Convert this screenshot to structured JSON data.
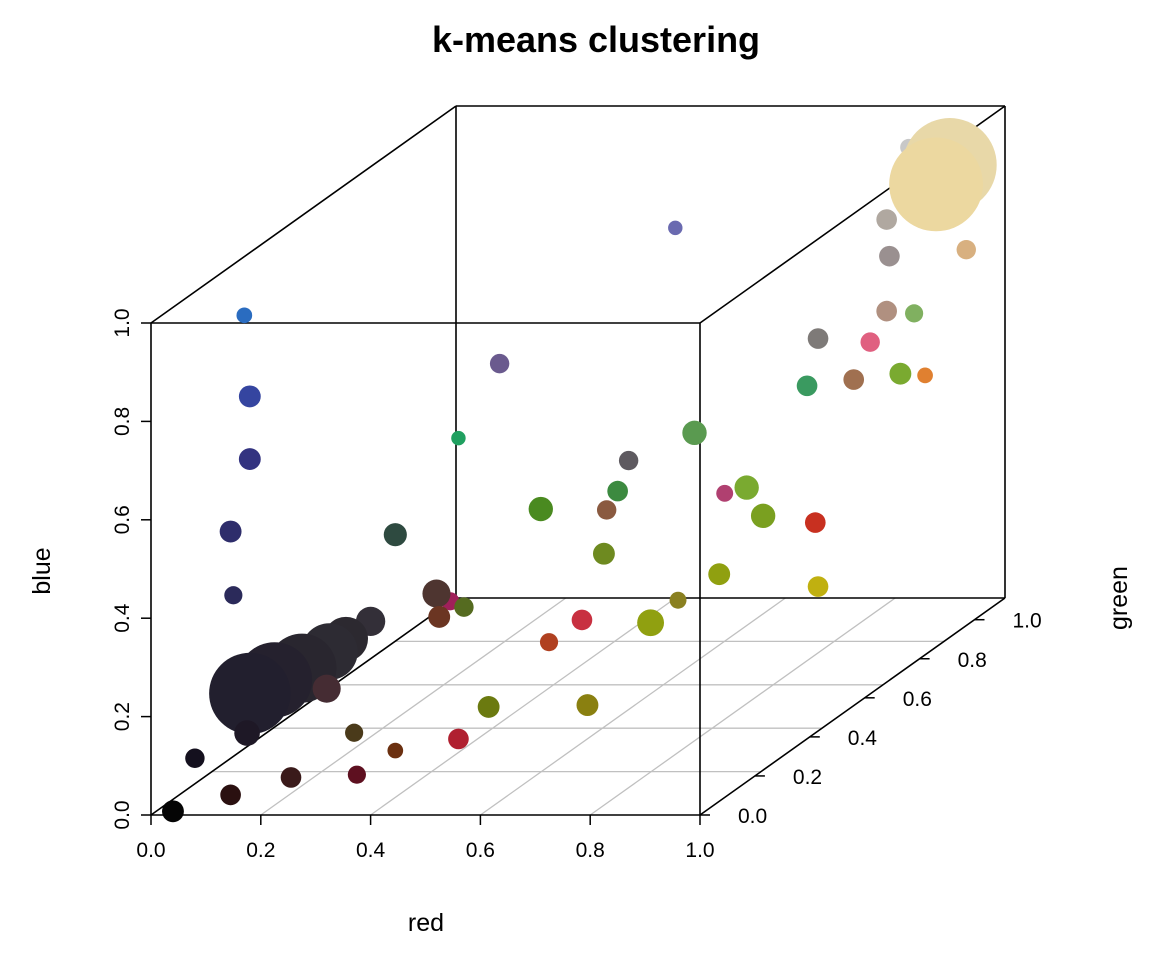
{
  "chart_data": {
    "type": "scatter",
    "title": "k-means clustering",
    "xlabel": "red",
    "ylabel": "green",
    "zlabel": "blue",
    "xlim": [
      0,
      1
    ],
    "ylim": [
      0,
      1
    ],
    "zlim": [
      0,
      1
    ],
    "x_ticks": [
      "0.0",
      "0.2",
      "0.4",
      "0.6",
      "0.8",
      "1.0"
    ],
    "y_ticks": [
      "0.0",
      "0.2",
      "0.4",
      "0.6",
      "0.8",
      "1.0"
    ],
    "z_ticks": [
      "0.0",
      "0.2",
      "0.4",
      "0.6",
      "0.8",
      "1.0"
    ],
    "grid": "floor",
    "note": "3D scatter of cluster centers; point colour = cluster colour, point size = cluster size",
    "points": [
      {
        "r": 0.03,
        "g": 0.02,
        "b": 0.02,
        "size": 1.2,
        "color": "#050505"
      },
      {
        "r": 0.07,
        "g": 0.02,
        "b": 0.13,
        "size": 1.0,
        "color": "#14101e"
      },
      {
        "r": 0.13,
        "g": 0.03,
        "b": 0.05,
        "size": 1.1,
        "color": "#2a1010"
      },
      {
        "r": 0.15,
        "g": 0.05,
        "b": 0.17,
        "size": 1.5,
        "color": "#1e1826"
      },
      {
        "r": 0.14,
        "g": 0.08,
        "b": 0.24,
        "size": 6.0,
        "color": "#221f2e"
      },
      {
        "r": 0.15,
        "g": 0.15,
        "b": 0.24,
        "size": 5.5,
        "color": "#25212e"
      },
      {
        "r": 0.17,
        "g": 0.21,
        "b": 0.24,
        "size": 5.0,
        "color": "#29262f"
      },
      {
        "r": 0.19,
        "g": 0.27,
        "b": 0.25,
        "size": 4.0,
        "color": "#2d2b33"
      },
      {
        "r": 0.2,
        "g": 0.31,
        "b": 0.26,
        "size": 3.0,
        "color": "#2c2930"
      },
      {
        "r": 0.2,
        "g": 0.4,
        "b": 0.26,
        "size": 1.8,
        "color": "#332f38"
      },
      {
        "r": 0.13,
        "g": 0.04,
        "b": 0.46,
        "size": 0.9,
        "color": "#2b2a5a"
      },
      {
        "r": 0.11,
        "g": 0.07,
        "b": 0.58,
        "size": 1.2,
        "color": "#2e2d6b"
      },
      {
        "r": 0.12,
        "g": 0.12,
        "b": 0.71,
        "size": 1.2,
        "color": "#333380"
      },
      {
        "r": 0.12,
        "g": 0.12,
        "b": 0.84,
        "size": 1.2,
        "color": "#3545a0"
      },
      {
        "r": 0.1,
        "g": 0.14,
        "b": 1.0,
        "size": 0.7,
        "color": "#2a6cc0"
      },
      {
        "r": 0.28,
        "g": 0.08,
        "b": 0.25,
        "size": 1.7,
        "color": "#452c33"
      },
      {
        "r": 0.22,
        "g": 0.07,
        "b": 0.07,
        "size": 1.1,
        "color": "#3a1a1a"
      },
      {
        "r": 0.37,
        "g": 0.01,
        "b": 0.1,
        "size": 0.9,
        "color": "#5e1020"
      },
      {
        "r": 0.27,
        "g": 0.2,
        "b": 0.11,
        "size": 0.9,
        "color": "#4a3a1a"
      },
      {
        "r": 0.27,
        "g": 0.35,
        "b": 0.46,
        "size": 1.3,
        "color": "#2e4a40"
      },
      {
        "r": 0.36,
        "g": 0.32,
        "b": 0.35,
        "size": 1.7,
        "color": "#4e3530"
      },
      {
        "r": 0.44,
        "g": 0.01,
        "b": 0.15,
        "size": 0.7,
        "color": "#6b3010"
      },
      {
        "r": 0.55,
        "g": 0.02,
        "b": 0.17,
        "size": 1.1,
        "color": "#b02030"
      },
      {
        "r": 0.4,
        "g": 0.25,
        "b": 0.33,
        "size": 1.2,
        "color": "#6b3522"
      },
      {
        "r": 0.38,
        "g": 0.33,
        "b": 0.33,
        "size": 0.9,
        "color": "#a0205a"
      },
      {
        "r": 0.42,
        "g": 0.3,
        "b": 0.33,
        "size": 1.0,
        "color": "#556b20"
      },
      {
        "r": 0.56,
        "g": 0.11,
        "b": 0.2,
        "size": 1.2,
        "color": "#6b7a10"
      },
      {
        "r": 0.64,
        "g": 0.17,
        "b": 0.31,
        "size": 0.9,
        "color": "#b04020"
      },
      {
        "r": 0.68,
        "g": 0.21,
        "b": 0.34,
        "size": 1.1,
        "color": "#c83040"
      },
      {
        "r": 0.76,
        "g": 0.07,
        "b": 0.22,
        "size": 1.2,
        "color": "#8a8010"
      },
      {
        "r": 0.8,
        "g": 0.22,
        "b": 0.33,
        "size": 1.6,
        "color": "#90a010"
      },
      {
        "r": 0.6,
        "g": 0.45,
        "b": 0.38,
        "size": 1.2,
        "color": "#6e8a20"
      },
      {
        "r": 0.78,
        "g": 0.36,
        "b": 0.32,
        "size": 0.8,
        "color": "#8a8020"
      },
      {
        "r": 0.85,
        "g": 0.37,
        "b": 0.37,
        "size": 1.2,
        "color": "#90a010"
      },
      {
        "r": 1.0,
        "g": 0.43,
        "b": 0.32,
        "size": 1.1,
        "color": "#c0b010"
      },
      {
        "r": 0.93,
        "g": 0.56,
        "b": 0.4,
        "size": 1.1,
        "color": "#c83020"
      },
      {
        "r": 0.83,
        "g": 0.57,
        "b": 0.41,
        "size": 1.4,
        "color": "#7aa020"
      },
      {
        "r": 0.42,
        "g": 0.58,
        "b": 0.42,
        "size": 1.4,
        "color": "#4a8a20"
      },
      {
        "r": 0.53,
        "g": 0.6,
        "b": 0.41,
        "size": 1.0,
        "color": "#8a5a40"
      },
      {
        "r": 0.44,
        "g": 0.82,
        "b": 0.36,
        "size": 1.1,
        "color": "#3c8a40"
      },
      {
        "r": 0.53,
        "g": 0.68,
        "b": 0.48,
        "size": 1.0,
        "color": "#5e5a60"
      },
      {
        "r": 0.69,
        "g": 0.71,
        "b": 0.4,
        "size": 0.8,
        "color": "#b04070"
      },
      {
        "r": 0.74,
        "g": 0.69,
        "b": 0.42,
        "size": 1.4,
        "color": "#7aaa30"
      },
      {
        "r": 0.69,
        "g": 0.6,
        "b": 0.57,
        "size": 1.4,
        "color": "#5a9a50"
      },
      {
        "r": 0.75,
        "g": 0.89,
        "b": 0.55,
        "size": 1.1,
        "color": "#3a9a60"
      },
      {
        "r": 0.93,
        "g": 0.7,
        "b": 0.64,
        "size": 1.1,
        "color": "#a07050"
      },
      {
        "r": 1.0,
        "g": 0.73,
        "b": 0.64,
        "size": 1.2,
        "color": "#7aaa30"
      },
      {
        "r": 0.76,
        "g": 0.91,
        "b": 0.64,
        "size": 1.1,
        "color": "#7e7a78"
      },
      {
        "r": 0.92,
        "g": 0.94,
        "b": 0.68,
        "size": 0.9,
        "color": "#80b060"
      },
      {
        "r": 0.38,
        "g": 0.51,
        "b": 0.75,
        "size": 1.0,
        "color": "#6a5a8e"
      },
      {
        "r": 0.36,
        "g": 0.4,
        "b": 0.64,
        "size": 0.6,
        "color": "#20a060"
      },
      {
        "r": 0.55,
        "g": 0.81,
        "b": 0.91,
        "size": 0.6,
        "color": "#6a6ab0"
      },
      {
        "r": 1.0,
        "g": 0.69,
        "b": 0.9,
        "size": 1.1,
        "color": "#9a9090"
      },
      {
        "r": 1.0,
        "g": 0.68,
        "b": 0.79,
        "size": 1.1,
        "color": "#b09080"
      },
      {
        "r": 1.0,
        "g": 0.62,
        "b": 0.75,
        "size": 1.0,
        "color": "#e06080"
      },
      {
        "r": 1.0,
        "g": 0.82,
        "b": 0.6,
        "size": 0.7,
        "color": "#e08030"
      },
      {
        "r": 1.0,
        "g": 0.68,
        "b": 0.98,
        "size": 1.1,
        "color": "#b0a8a0"
      },
      {
        "r": 1.0,
        "g": 0.97,
        "b": 0.8,
        "size": 1.0,
        "color": "#d8b080"
      },
      {
        "r": 1.0,
        "g": 0.91,
        "b": 1.0,
        "size": 7.0,
        "color": "#e8d8a8"
      },
      {
        "r": 1.0,
        "g": 0.86,
        "b": 0.98,
        "size": 7.0,
        "color": "#ecd8a0"
      },
      {
        "r": 1.0,
        "g": 1.0,
        "b": 1.0,
        "size": 1.6,
        "color": "#fce8a8"
      },
      {
        "r": 0.88,
        "g": 1.0,
        "b": 1.0,
        "size": 0.8,
        "color": "#c8c8c8"
      }
    ]
  }
}
